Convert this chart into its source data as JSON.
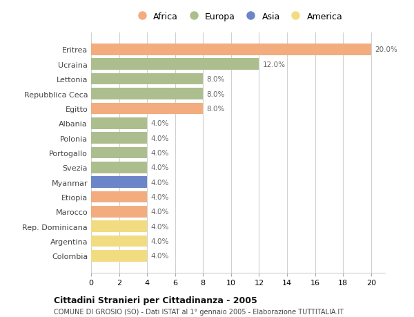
{
  "categories": [
    "Colombia",
    "Argentina",
    "Rep. Dominicana",
    "Marocco",
    "Etiopia",
    "Myanmar",
    "Svezia",
    "Portogallo",
    "Polonia",
    "Albania",
    "Egitto",
    "Repubblica Ceca",
    "Lettonia",
    "Ucraina",
    "Eritrea"
  ],
  "values": [
    4.0,
    4.0,
    4.0,
    4.0,
    4.0,
    4.0,
    4.0,
    4.0,
    4.0,
    4.0,
    8.0,
    8.0,
    8.0,
    12.0,
    20.0
  ],
  "continents": [
    "America",
    "America",
    "America",
    "Africa",
    "Africa",
    "Asia",
    "Europa",
    "Europa",
    "Europa",
    "Europa",
    "Africa",
    "Europa",
    "Europa",
    "Europa",
    "Africa"
  ],
  "colors": {
    "Africa": "#F2AC7E",
    "Europa": "#ADBE8E",
    "Asia": "#6B85C8",
    "America": "#F2DC82"
  },
  "legend_order": [
    "Africa",
    "Europa",
    "Asia",
    "America"
  ],
  "title": "Cittadini Stranieri per Cittadinanza - 2005",
  "subtitle": "COMUNE DI GROSIO (SO) - Dati ISTAT al 1° gennaio 2005 - Elaborazione TUTTITALIA.IT",
  "xlim": [
    0,
    21
  ],
  "xticks": [
    0,
    2,
    4,
    6,
    8,
    10,
    12,
    14,
    16,
    18,
    20
  ],
  "bar_height": 0.78,
  "background_color": "#ffffff",
  "grid_color": "#d0d0d0"
}
